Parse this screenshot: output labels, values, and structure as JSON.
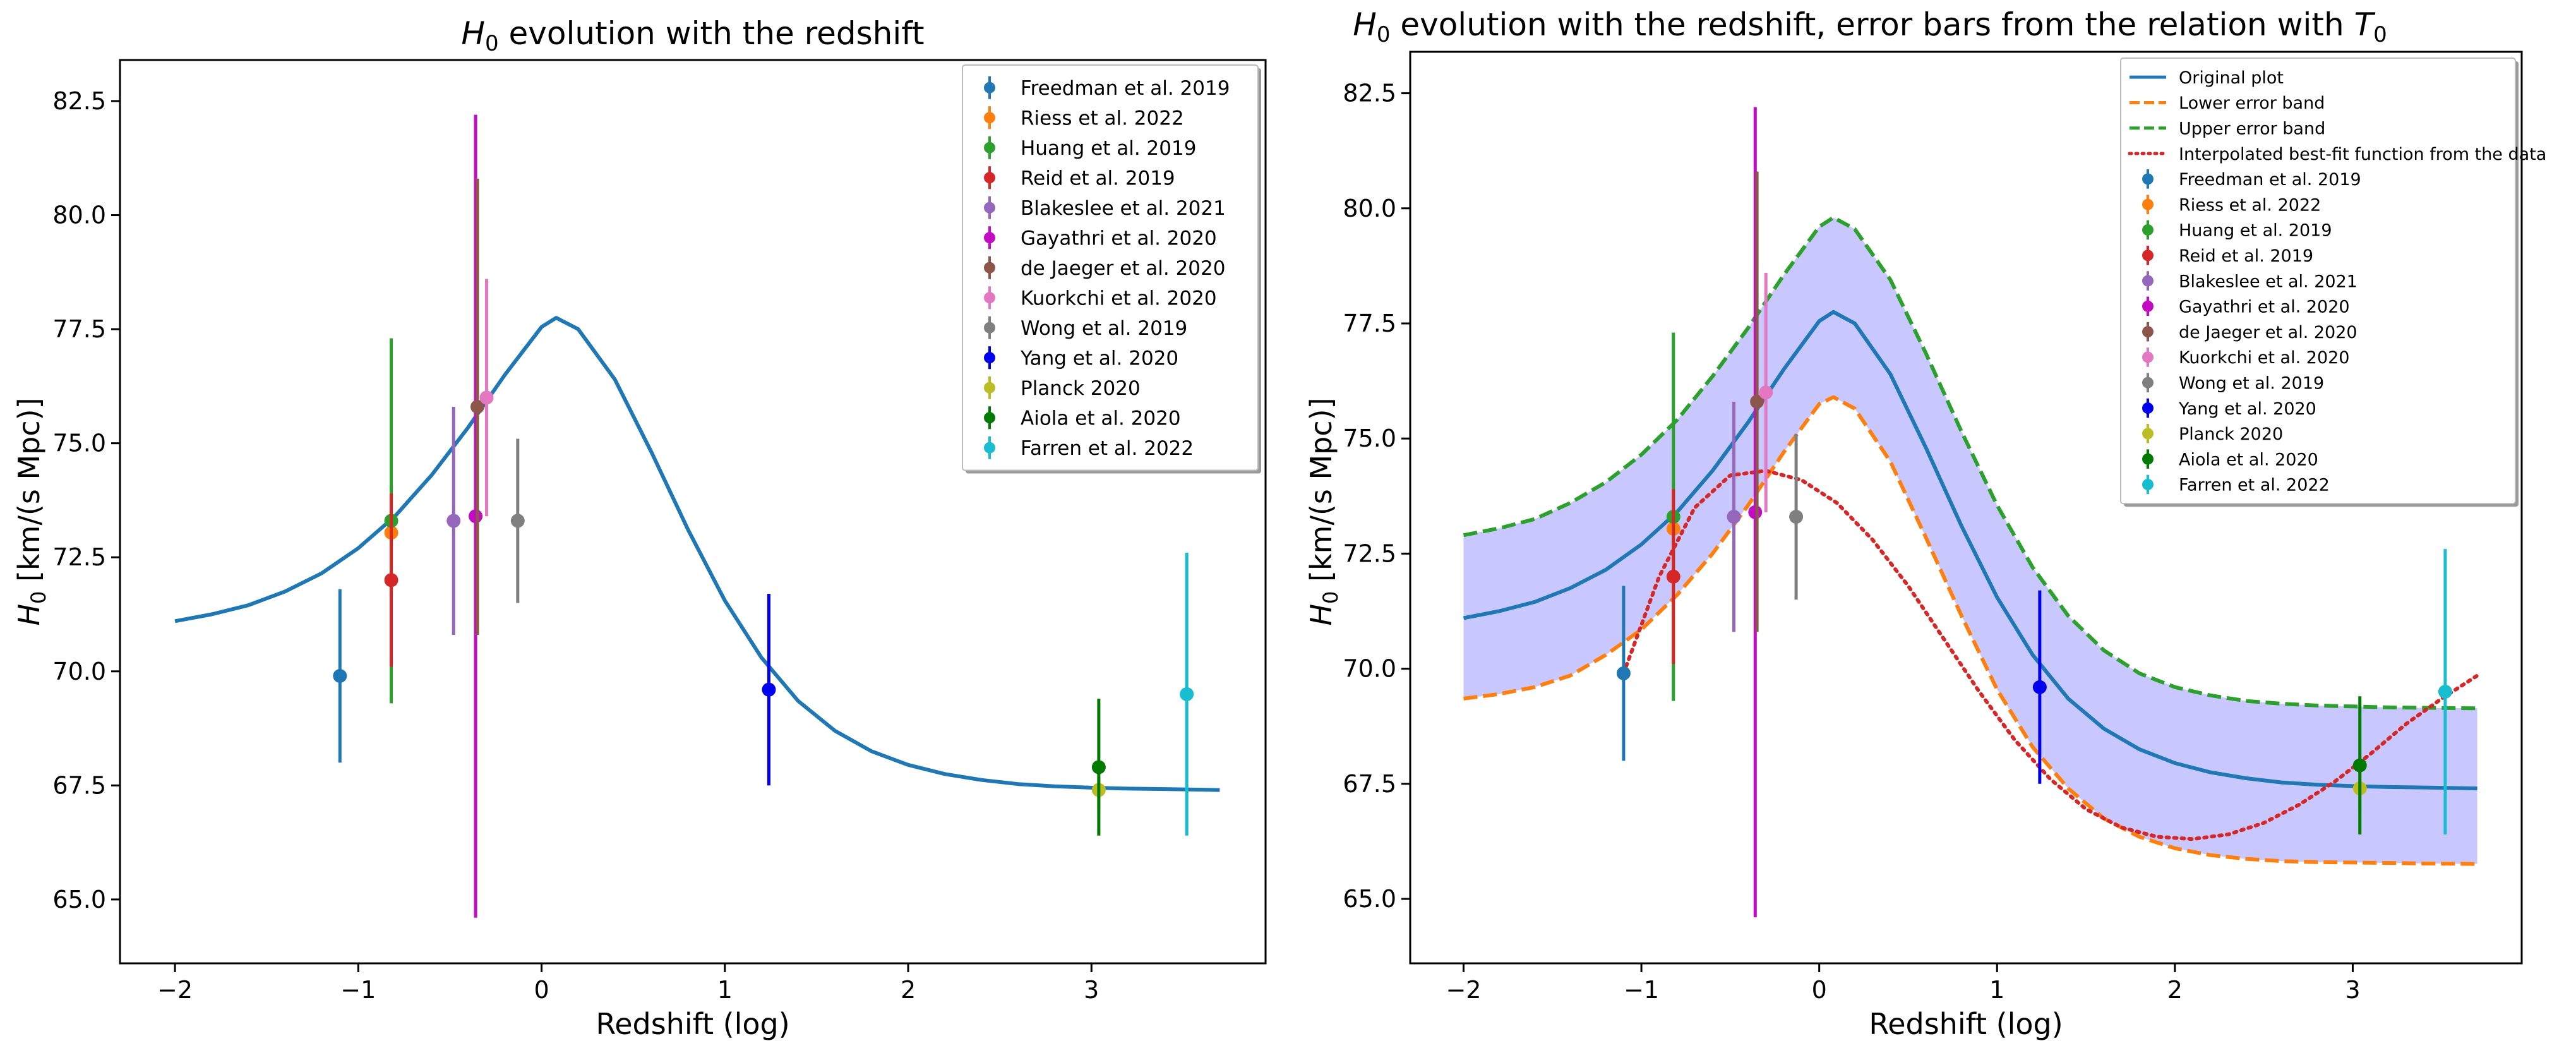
{
  "chart_data": [
    {
      "type": "scatter",
      "title_main": "H",
      "title_sub": "0",
      "title_rest": " evolution with the redshift",
      "xlabel": "Redshift (log)",
      "ylabel_main": "H",
      "ylabel_sub": "0",
      "ylabel_rest": " [km/(s Mpc)]",
      "xlim": [
        -2.3,
        3.95
      ],
      "ylim": [
        63.6,
        83.4
      ],
      "xticks": [
        -2,
        -1,
        0,
        1,
        2,
        3
      ],
      "xtick_labels": [
        "−2",
        "−1",
        "0",
        "1",
        "2",
        "3"
      ],
      "yticks": [
        65.0,
        67.5,
        70.0,
        72.5,
        75.0,
        77.5,
        80.0,
        82.5
      ],
      "ytick_labels": [
        "65.0",
        "67.5",
        "70.0",
        "72.5",
        "75.0",
        "77.5",
        "80.0",
        "82.5"
      ],
      "legend_position": "upper right",
      "lines": [
        {
          "name": "Original plot",
          "color": "#1f77b4",
          "style": "solid",
          "x": [
            -2.0,
            -1.8,
            -1.6,
            -1.4,
            -1.2,
            -1.0,
            -0.8,
            -0.6,
            -0.4,
            -0.2,
            0.0,
            0.08,
            0.2,
            0.4,
            0.6,
            0.8,
            1.0,
            1.2,
            1.4,
            1.6,
            1.8,
            2.0,
            2.2,
            2.4,
            2.6,
            2.8,
            3.0,
            3.2,
            3.4,
            3.7
          ],
          "y": [
            71.1,
            71.25,
            71.45,
            71.75,
            72.15,
            72.7,
            73.4,
            74.3,
            75.35,
            76.5,
            77.55,
            77.75,
            77.5,
            76.4,
            74.8,
            73.1,
            71.55,
            70.3,
            69.35,
            68.7,
            68.25,
            67.95,
            67.75,
            67.62,
            67.53,
            67.48,
            67.45,
            67.43,
            67.42,
            67.4
          ]
        }
      ],
      "points": [
        {
          "name": "Freedman et al. 2019",
          "color": "#1f77b4",
          "x": -1.1,
          "y": 69.9,
          "yerr_low": 1.9,
          "yerr_high": 1.9
        },
        {
          "name": "Riess et al. 2022",
          "color": "#ff7f0e",
          "x": -0.82,
          "y": 73.04,
          "yerr_low": 1.04,
          "yerr_high": 1.04
        },
        {
          "name": "Huang et al. 2019",
          "color": "#2ca02c",
          "x": -0.82,
          "y": 73.3,
          "yerr_low": 4.0,
          "yerr_high": 4.0
        },
        {
          "name": "Reid et al. 2019",
          "color": "#d62728",
          "x": -0.82,
          "y": 72.0,
          "yerr_low": 1.9,
          "yerr_high": 1.9
        },
        {
          "name": "Blakeslee et al. 2021",
          "color": "#9467bd",
          "x": -0.48,
          "y": 73.3,
          "yerr_low": 2.5,
          "yerr_high": 2.5
        },
        {
          "name": "Gayathri et al. 2020",
          "color": "#c20bc2",
          "x": -0.36,
          "y": 73.4,
          "yerr_low": 8.8,
          "yerr_high": 8.8
        },
        {
          "name": "de Jaeger et al. 2020",
          "color": "#8c564b",
          "x": -0.35,
          "y": 75.8,
          "yerr_low": 5.0,
          "yerr_high": 5.0
        },
        {
          "name": "Kuorkchi et al. 2020",
          "color": "#e377c2",
          "x": -0.3,
          "y": 76.0,
          "yerr_low": 2.6,
          "yerr_high": 2.6
        },
        {
          "name": "Wong et al. 2019",
          "color": "#7f7f7f",
          "x": -0.13,
          "y": 73.3,
          "yerr_low": 1.8,
          "yerr_high": 1.8
        },
        {
          "name": "Yang et al. 2020",
          "color": "#0000ee",
          "x": 1.24,
          "y": 69.6,
          "yerr_low": 2.1,
          "yerr_high": 2.1
        },
        {
          "name": "Planck 2020",
          "color": "#bcbd22",
          "x": 3.04,
          "y": 67.4,
          "yerr_low": 0.5,
          "yerr_high": 0.5
        },
        {
          "name": "Aiola et al. 2020",
          "color": "#007a00",
          "x": 3.04,
          "y": 67.9,
          "yerr_low": 1.5,
          "yerr_high": 1.5
        },
        {
          "name": "Farren et al. 2022",
          "color": "#17becf",
          "x": 3.52,
          "y": 69.5,
          "yerr_low": 3.1,
          "yerr_high": 3.1
        }
      ],
      "legend": [
        {
          "kind": "point",
          "label": "Freedman et al. 2019",
          "color": "#1f77b4"
        },
        {
          "kind": "point",
          "label": "Riess et al. 2022",
          "color": "#ff7f0e"
        },
        {
          "kind": "point",
          "label": "Huang et al. 2019",
          "color": "#2ca02c"
        },
        {
          "kind": "point",
          "label": "Reid et al. 2019",
          "color": "#d62728"
        },
        {
          "kind": "point",
          "label": "Blakeslee et al. 2021",
          "color": "#9467bd"
        },
        {
          "kind": "point",
          "label": "Gayathri et al. 2020",
          "color": "#c20bc2"
        },
        {
          "kind": "point",
          "label": "de Jaeger et al. 2020",
          "color": "#8c564b"
        },
        {
          "kind": "point",
          "label": "Kuorkchi et al. 2020",
          "color": "#e377c2"
        },
        {
          "kind": "point",
          "label": "Wong et al. 2019",
          "color": "#7f7f7f"
        },
        {
          "kind": "point",
          "label": "Yang et al. 2020",
          "color": "#0000ee"
        },
        {
          "kind": "point",
          "label": "Planck 2020",
          "color": "#bcbd22"
        },
        {
          "kind": "point",
          "label": "Aiola et al. 2020",
          "color": "#007a00"
        },
        {
          "kind": "point",
          "label": "Farren et al. 2022",
          "color": "#17becf"
        }
      ]
    },
    {
      "type": "scatter",
      "title_main": "H",
      "title_sub": "0",
      "title_rest": " evolution with the redshift, error bars from the relation with ",
      "title_tail_main": "T",
      "title_tail_sub": "0",
      "xlabel": "Redshift (log)",
      "ylabel_main": "H",
      "ylabel_sub": "0",
      "ylabel_rest": " [km/(s Mpc)]",
      "xlim": [
        -2.3,
        3.95
      ],
      "ylim": [
        63.6,
        83.4
      ],
      "xticks": [
        -2,
        -1,
        0,
        1,
        2,
        3
      ],
      "xtick_labels": [
        "−2",
        "−1",
        "0",
        "1",
        "2",
        "3"
      ],
      "yticks": [
        65.0,
        67.5,
        70.0,
        72.5,
        75.0,
        77.5,
        80.0,
        82.5
      ],
      "ytick_labels": [
        "65.0",
        "67.5",
        "70.0",
        "72.5",
        "75.0",
        "77.5",
        "80.0",
        "82.5"
      ],
      "legend_position": "upper right",
      "band": {
        "color": "#c8c8ff",
        "lower": "Lower error band",
        "upper": "Upper error band"
      },
      "lines": [
        {
          "name": "Original plot",
          "color": "#1f77b4",
          "style": "solid",
          "x": [
            -2.0,
            -1.8,
            -1.6,
            -1.4,
            -1.2,
            -1.0,
            -0.8,
            -0.6,
            -0.4,
            -0.2,
            0.0,
            0.08,
            0.2,
            0.4,
            0.6,
            0.8,
            1.0,
            1.2,
            1.4,
            1.6,
            1.8,
            2.0,
            2.2,
            2.4,
            2.6,
            2.8,
            3.0,
            3.2,
            3.4,
            3.7
          ],
          "y": [
            71.1,
            71.25,
            71.45,
            71.75,
            72.15,
            72.7,
            73.4,
            74.3,
            75.35,
            76.5,
            77.55,
            77.75,
            77.5,
            76.4,
            74.8,
            73.1,
            71.55,
            70.3,
            69.35,
            68.7,
            68.25,
            67.95,
            67.75,
            67.62,
            67.53,
            67.48,
            67.45,
            67.43,
            67.42,
            67.4
          ]
        },
        {
          "name": "Lower error band",
          "color": "#ff7f0e",
          "style": "dashed",
          "x": [
            -2.0,
            -1.8,
            -1.6,
            -1.4,
            -1.2,
            -1.0,
            -0.8,
            -0.6,
            -0.4,
            -0.2,
            0.0,
            0.08,
            0.2,
            0.4,
            0.6,
            0.8,
            1.0,
            1.2,
            1.4,
            1.6,
            1.8,
            2.0,
            2.2,
            2.4,
            2.6,
            2.8,
            3.0,
            3.2,
            3.4,
            3.7
          ],
          "y": [
            69.35,
            69.45,
            69.6,
            69.85,
            70.3,
            70.85,
            71.6,
            72.5,
            73.55,
            74.7,
            75.75,
            75.9,
            75.65,
            74.5,
            72.85,
            71.15,
            69.55,
            68.3,
            67.4,
            66.75,
            66.35,
            66.1,
            65.95,
            65.87,
            65.82,
            65.8,
            65.79,
            65.78,
            65.77,
            65.76
          ]
        },
        {
          "name": "Upper error band",
          "color": "#2ca02c",
          "style": "dashed",
          "x": [
            -2.0,
            -1.8,
            -1.6,
            -1.4,
            -1.2,
            -1.0,
            -0.8,
            -0.6,
            -0.4,
            -0.2,
            0.0,
            0.08,
            0.2,
            0.4,
            0.6,
            0.8,
            1.0,
            1.2,
            1.4,
            1.6,
            1.8,
            2.0,
            2.2,
            2.4,
            2.6,
            2.8,
            3.0,
            3.2,
            3.4,
            3.7
          ],
          "y": [
            72.9,
            73.05,
            73.25,
            73.6,
            74.05,
            74.65,
            75.4,
            76.35,
            77.4,
            78.55,
            79.6,
            79.8,
            79.55,
            78.45,
            76.85,
            75.15,
            73.55,
            72.2,
            71.15,
            70.4,
            69.9,
            69.6,
            69.42,
            69.3,
            69.24,
            69.2,
            69.18,
            69.16,
            69.15,
            69.14
          ]
        },
        {
          "name": "Interpolated best-fit function from the data",
          "color": "#d62728",
          "style": "dotted",
          "x": [
            -1.1,
            -0.9,
            -0.7,
            -0.5,
            -0.3,
            -0.1,
            0.1,
            0.3,
            0.5,
            0.7,
            0.9,
            1.1,
            1.3,
            1.5,
            1.7,
            1.9,
            2.1,
            2.3,
            2.5,
            2.7,
            2.9,
            3.1,
            3.3,
            3.5,
            3.7
          ],
          "y": [
            69.9,
            72.0,
            73.5,
            74.2,
            74.3,
            74.1,
            73.6,
            72.8,
            71.8,
            70.65,
            69.5,
            68.45,
            67.6,
            66.95,
            66.55,
            66.35,
            66.3,
            66.4,
            66.65,
            67.05,
            67.55,
            68.15,
            68.8,
            69.35,
            69.85
          ]
        }
      ],
      "points": [
        {
          "name": "Freedman et al. 2019",
          "color": "#1f77b4",
          "x": -1.1,
          "y": 69.9,
          "yerr_low": 1.9,
          "yerr_high": 1.9
        },
        {
          "name": "Riess et al. 2022",
          "color": "#ff7f0e",
          "x": -0.82,
          "y": 73.04,
          "yerr_low": 1.04,
          "yerr_high": 1.04
        },
        {
          "name": "Huang et al. 2019",
          "color": "#2ca02c",
          "x": -0.82,
          "y": 73.3,
          "yerr_low": 4.0,
          "yerr_high": 4.0
        },
        {
          "name": "Reid et al. 2019",
          "color": "#d62728",
          "x": -0.82,
          "y": 72.0,
          "yerr_low": 1.9,
          "yerr_high": 1.9
        },
        {
          "name": "Blakeslee et al. 2021",
          "color": "#9467bd",
          "x": -0.48,
          "y": 73.3,
          "yerr_low": 2.5,
          "yerr_high": 2.5
        },
        {
          "name": "Gayathri et al. 2020",
          "color": "#c20bc2",
          "x": -0.36,
          "y": 73.4,
          "yerr_low": 8.8,
          "yerr_high": 8.8
        },
        {
          "name": "de Jaeger et al. 2020",
          "color": "#8c564b",
          "x": -0.35,
          "y": 75.8,
          "yerr_low": 5.0,
          "yerr_high": 5.0
        },
        {
          "name": "Kuorkchi et al. 2020",
          "color": "#e377c2",
          "x": -0.3,
          "y": 76.0,
          "yerr_low": 2.6,
          "yerr_high": 2.6
        },
        {
          "name": "Wong et al. 2019",
          "color": "#7f7f7f",
          "x": -0.13,
          "y": 73.3,
          "yerr_low": 1.8,
          "yerr_high": 1.8
        },
        {
          "name": "Yang et al. 2020",
          "color": "#0000ee",
          "x": 1.24,
          "y": 69.6,
          "yerr_low": 2.1,
          "yerr_high": 2.1
        },
        {
          "name": "Planck 2020",
          "color": "#bcbd22",
          "x": 3.04,
          "y": 67.4,
          "yerr_low": 0.5,
          "yerr_high": 0.5
        },
        {
          "name": "Aiola et al. 2020",
          "color": "#007a00",
          "x": 3.04,
          "y": 67.9,
          "yerr_low": 1.5,
          "yerr_high": 1.5
        },
        {
          "name": "Farren et al. 2022",
          "color": "#17becf",
          "x": 3.52,
          "y": 69.5,
          "yerr_low": 3.1,
          "yerr_high": 3.1
        }
      ],
      "legend": [
        {
          "kind": "line",
          "style": "solid",
          "label": "Original plot",
          "color": "#1f77b4"
        },
        {
          "kind": "line",
          "style": "dashed",
          "label": "Lower error band",
          "color": "#ff7f0e"
        },
        {
          "kind": "line",
          "style": "dashed",
          "label": "Upper error band",
          "color": "#2ca02c"
        },
        {
          "kind": "line",
          "style": "dotted",
          "label": "Interpolated best-fit function from the data",
          "color": "#d62728"
        },
        {
          "kind": "point",
          "label": "Freedman et al. 2019",
          "color": "#1f77b4"
        },
        {
          "kind": "point",
          "label": "Riess et al. 2022",
          "color": "#ff7f0e"
        },
        {
          "kind": "point",
          "label": "Huang et al. 2019",
          "color": "#2ca02c"
        },
        {
          "kind": "point",
          "label": "Reid et al. 2019",
          "color": "#d62728"
        },
        {
          "kind": "point",
          "label": "Blakeslee et al. 2021",
          "color": "#9467bd"
        },
        {
          "kind": "point",
          "label": "Gayathri et al. 2020",
          "color": "#c20bc2"
        },
        {
          "kind": "point",
          "label": "de Jaeger et al. 2020",
          "color": "#8c564b"
        },
        {
          "kind": "point",
          "label": "Kuorkchi et al. 2020",
          "color": "#e377c2"
        },
        {
          "kind": "point",
          "label": "Wong et al. 2019",
          "color": "#7f7f7f"
        },
        {
          "kind": "point",
          "label": "Yang et al. 2020",
          "color": "#0000ee"
        },
        {
          "kind": "point",
          "label": "Planck 2020",
          "color": "#bcbd22"
        },
        {
          "kind": "point",
          "label": "Aiola et al. 2020",
          "color": "#007a00"
        },
        {
          "kind": "point",
          "label": "Farren et al. 2022",
          "color": "#17becf"
        }
      ]
    }
  ]
}
